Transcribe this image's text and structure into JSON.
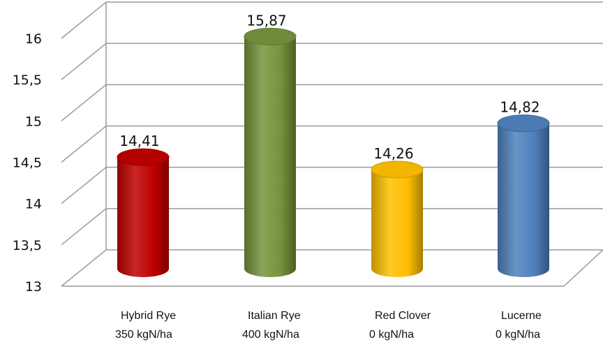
{
  "chart_data": {
    "type": "bar",
    "title": "",
    "xlabel": "",
    "ylabel": "",
    "ylim": [
      13,
      16
    ],
    "yticks": [
      "13",
      "13,5",
      "14",
      "14,5",
      "15",
      "15,5",
      "16"
    ],
    "categories": [
      {
        "name": "Hybrid Rye",
        "sub": "350 kgN/ha"
      },
      {
        "name": "Italian Rye",
        "sub": "400 kgN/ha"
      },
      {
        "name": "Red Clover",
        "sub": "0 kgN/ha"
      },
      {
        "name": "Lucerne",
        "sub": "0 kgN/ha"
      }
    ],
    "values": [
      14.41,
      15.87,
      14.26,
      14.82
    ],
    "value_labels": [
      "14,41",
      "15,87",
      "14,26",
      "14,82"
    ],
    "colors": [
      "#c00000",
      "#77933c",
      "#ffc000",
      "#4f81bd"
    ],
    "grid": true,
    "legend": "none",
    "style": "3d-cylinder"
  }
}
